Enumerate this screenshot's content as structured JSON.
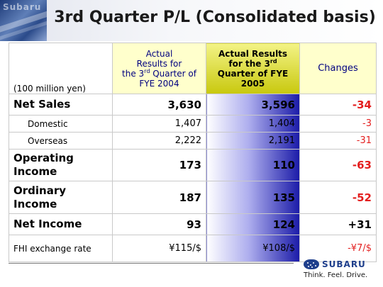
{
  "header": {
    "brand_word": "Subaru",
    "title": "3rd Quarter P/L (Consolidated basis)"
  },
  "table": {
    "unit_label": "(100 million yen)",
    "col_prev": {
      "line1": "Actual",
      "line2": "Results for",
      "line3a": "the 3",
      "line3sup": "rd",
      "line3b": " Quarter of",
      "line4": "FYE 2004"
    },
    "col_cur": {
      "line1": "Actual Results",
      "line2a": "for the 3",
      "line2sup": "rd",
      "line3": "Quarter of FYE",
      "line4": "2005"
    },
    "col_change": "Changes",
    "rows": [
      {
        "label": "Net Sales",
        "prev": "3,630",
        "cur": "3,596",
        "change": "-34"
      },
      {
        "label": "Domestic",
        "prev": "1,407",
        "cur": "1,404",
        "change": "-3"
      },
      {
        "label": "Overseas",
        "prev": "2,222",
        "cur": "2,191",
        "change": "-31"
      },
      {
        "label_line1": "Operating",
        "label_line2": "Income",
        "prev": "173",
        "cur": "110",
        "change": "-63"
      },
      {
        "label_line1": "Ordinary",
        "label_line2": "Income",
        "prev": "187",
        "cur": "135",
        "change": "-52"
      },
      {
        "label": "Net Income",
        "prev": "93",
        "cur": "124",
        "change": "+31"
      },
      {
        "label": "FHI exchange rate",
        "prev": "¥115/$",
        "cur": "¥108/$",
        "change": "-¥7/$"
      }
    ]
  },
  "footer": {
    "logo_text": "SUBARU",
    "tagline": "Think. Feel. Drive."
  },
  "colors": {
    "negative": "#e31e1e",
    "header_highlight": "#ffffcc",
    "current_col_gradient_end": "#1b1ba8",
    "logo_blue": "#1f3f8c"
  }
}
